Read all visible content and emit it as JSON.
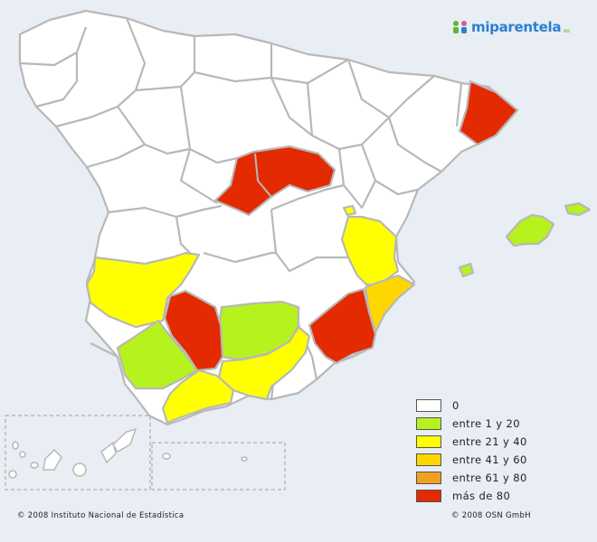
{
  "brand": {
    "name": "miparentela",
    "suffix": ".es"
  },
  "colors": {
    "water": "#e8eef3",
    "none": "#ffffff",
    "c1_20": "#b6f21e",
    "c21_40": "#ffff00",
    "c41_60": "#ffd700",
    "c61_80": "#f0a020",
    "c80plus": "#e32a00"
  },
  "legend": [
    {
      "label": "0",
      "color": "#ffffff"
    },
    {
      "label": "entre 1 y 20",
      "color": "#b6f21e"
    },
    {
      "label": "entre 21 y 40",
      "color": "#ffff00"
    },
    {
      "label": "entre 41 y 60",
      "color": "#ffd700"
    },
    {
      "label": "entre 61 y 80",
      "color": "#f0a020"
    },
    {
      "label": "más de 80",
      "color": "#e32a00"
    }
  ],
  "footer": {
    "left": "© 2008 Instituto Nacional de Estadística",
    "right": "© 2008 OSN GmbH"
  },
  "regions": [
    {
      "name": "Barcelona",
      "category": "más de 80"
    },
    {
      "name": "Madrid",
      "category": "más de 80"
    },
    {
      "name": "Sevilla",
      "category": "más de 80"
    },
    {
      "name": "Murcia",
      "category": "más de 80"
    },
    {
      "name": "Badajoz",
      "category": "entre 21 y 40"
    },
    {
      "name": "Valencia",
      "category": "entre 21 y 40"
    },
    {
      "name": "Málaga",
      "category": "entre 21 y 40"
    },
    {
      "name": "Granada",
      "category": "entre 21 y 40"
    },
    {
      "name": "Alicante",
      "category": "entre 41 y 60"
    },
    {
      "name": "Córdoba",
      "category": "entre 1 y 20"
    },
    {
      "name": "Huelva",
      "category": "entre 1 y 20"
    },
    {
      "name": "Baleares",
      "category": "entre 1 y 20"
    }
  ]
}
